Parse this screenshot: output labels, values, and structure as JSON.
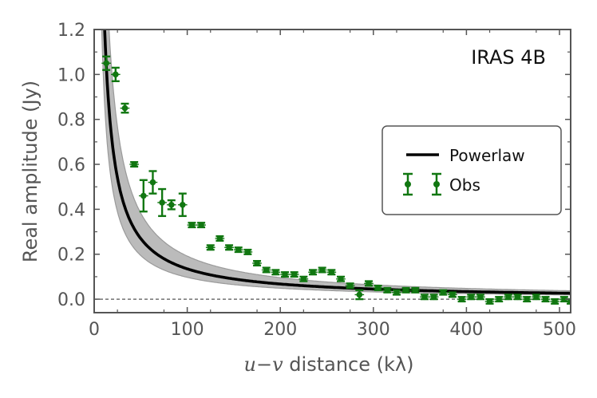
{
  "chart_data": {
    "type": "scatter",
    "title": "",
    "annotation": "IRAS 4B",
    "xlabel_italic": "u−v",
    "xlabel_rest": " distance (kλ)",
    "ylabel": "Real amplitude (Jy)",
    "xlim": [
      0,
      512
    ],
    "ylim": [
      -0.06,
      1.2
    ],
    "xticks": [
      0,
      100,
      200,
      300,
      400,
      500
    ],
    "yticks": [
      0.0,
      0.2,
      0.4,
      0.6,
      0.8,
      1.0,
      1.2
    ],
    "xtick_labels": [
      "0",
      "100",
      "200",
      "300",
      "400",
      "500"
    ],
    "ytick_labels": [
      "0.0",
      "0.2",
      "0.4",
      "0.6",
      "0.8",
      "1.0",
      "1.2"
    ],
    "legend_position": "center-right",
    "zero_line": 0.0,
    "colors": {
      "obs": "#117711",
      "model": "#000000",
      "band": "#b0b0b0",
      "axes": "#555555"
    },
    "powerlaw": {
      "name": "Powerlaw",
      "amplitude": 13.5,
      "exponent": -1,
      "band_lower_factor": 0.72,
      "band_upper_factor": 1.42
    },
    "series": [
      {
        "name": "Obs",
        "x": [
          13,
          23,
          33,
          43,
          53,
          63,
          73,
          83,
          95,
          105,
          115,
          125,
          135,
          145,
          155,
          165,
          175,
          185,
          195,
          205,
          215,
          225,
          235,
          245,
          255,
          265,
          275,
          285,
          295,
          305,
          315,
          325,
          335,
          345,
          355,
          365,
          375,
          385,
          395,
          405,
          415,
          425,
          435,
          445,
          455,
          465,
          475,
          485,
          495,
          505,
          512
        ],
        "y": [
          1.05,
          1.0,
          0.85,
          0.6,
          0.46,
          0.52,
          0.43,
          0.42,
          0.42,
          0.33,
          0.33,
          0.23,
          0.27,
          0.23,
          0.22,
          0.21,
          0.16,
          0.13,
          0.12,
          0.11,
          0.11,
          0.09,
          0.12,
          0.13,
          0.12,
          0.09,
          0.06,
          0.02,
          0.07,
          0.05,
          0.04,
          0.03,
          0.04,
          0.04,
          0.01,
          0.01,
          0.03,
          0.02,
          0.0,
          0.01,
          0.01,
          -0.01,
          0.0,
          0.01,
          0.01,
          0.0,
          0.01,
          0.0,
          -0.01,
          0.0,
          -0.01
        ],
        "yerr": [
          0.03,
          0.03,
          0.02,
          0.01,
          0.07,
          0.05,
          0.06,
          0.02,
          0.05,
          0.01,
          0.01,
          0.01,
          0.01,
          0.01,
          0.01,
          0.01,
          0.01,
          0.01,
          0.01,
          0.01,
          0.01,
          0.01,
          0.01,
          0.01,
          0.01,
          0.01,
          0.01,
          0.02,
          0.01,
          0.01,
          0.01,
          0.01,
          0.01,
          0.01,
          0.01,
          0.01,
          0.01,
          0.01,
          0.01,
          0.01,
          0.01,
          0.01,
          0.01,
          0.01,
          0.01,
          0.01,
          0.01,
          0.01,
          0.01,
          0.01,
          0.01
        ],
        "xerr": 5
      }
    ]
  }
}
